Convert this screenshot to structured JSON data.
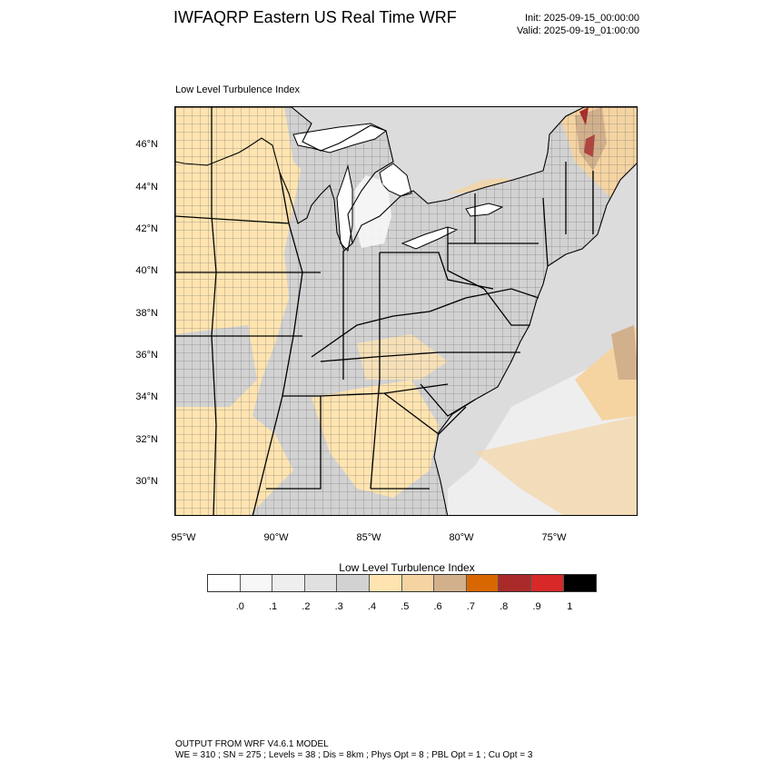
{
  "header": {
    "title": "IWFAQRP Eastern US Real Time WRF",
    "init": "Init: 2025-09-15_00:00:00",
    "valid": "Valid: 2025-09-19_01:00:00"
  },
  "map": {
    "field_title": "Low Level Turbulence Index",
    "lat_labels": [
      "46°N",
      "44°N",
      "42°N",
      "40°N",
      "38°N",
      "36°N",
      "34°N",
      "32°N",
      "30°N"
    ],
    "lon_labels": [
      "95°W",
      "90°W",
      "85°W",
      "80°W",
      "75°W"
    ]
  },
  "colorbar": {
    "title": "Low Level Turbulence Index",
    "colors": [
      "#ffffff",
      "#f7f7f7",
      "#eeeeee",
      "#e0e0e0",
      "#d2d2d2",
      "#ffe4b0",
      "#f5d4a2",
      "#d2b08c",
      "#d96700",
      "#aa2a2a",
      "#d82828",
      "#000000"
    ],
    "labels": [
      ".0",
      ".1",
      ".2",
      ".3",
      ".4",
      ".5",
      ".6",
      ".7",
      ".8",
      ".9",
      "1"
    ]
  },
  "footer": {
    "line1": "OUTPUT FROM WRF V4.6.1 MODEL",
    "line2": "WE = 310 ; SN = 275 ; Levels = 38 ; Dis = 8km ; Phys Opt = 8 ; PBL Opt = 1 ; Cu Opt = 3"
  }
}
